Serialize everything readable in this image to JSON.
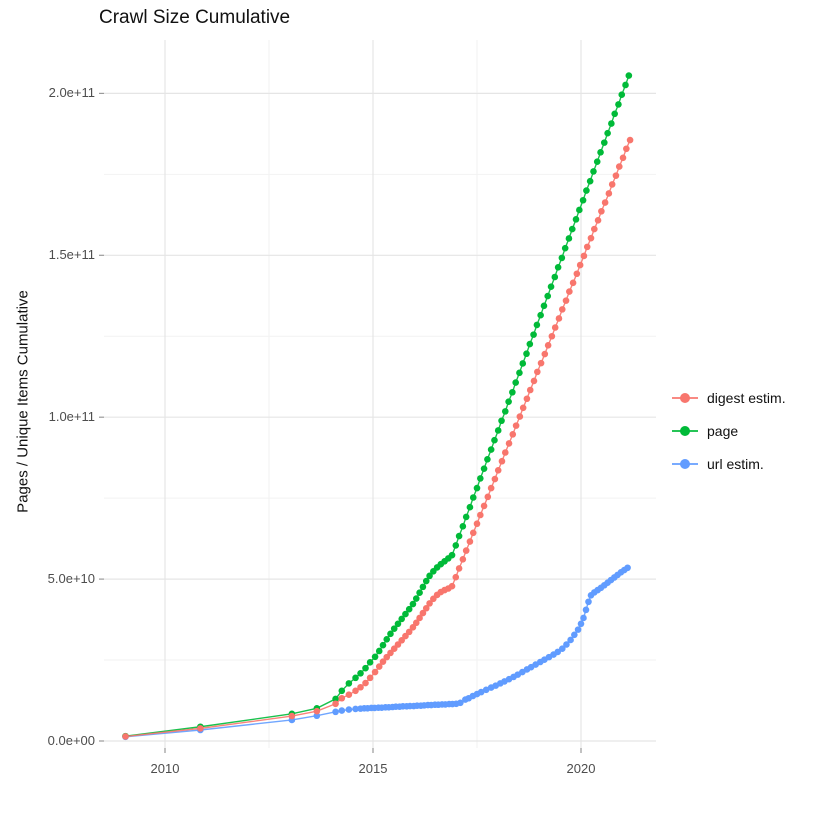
{
  "title": "Crawl Size Cumulative",
  "legend": {
    "items": [
      {
        "label": "digest estim.",
        "color": "#F8766D"
      },
      {
        "label": "page",
        "color": "#00BA38"
      },
      {
        "label": "url estim.",
        "color": "#619CFF"
      }
    ]
  },
  "chart_data": {
    "type": "scatter",
    "title": "Crawl Size Cumulative",
    "xlabel": "",
    "ylabel": "Pages / Unique Items Cumulative",
    "value_unit": "1e9",
    "xlim": [
      2008.5,
      2021.8
    ],
    "ylim": [
      0,
      215
    ],
    "grid": "on",
    "legend_position": "right",
    "x_major_ticks": [
      {
        "label": "2010",
        "t": 2010
      },
      {
        "label": "2015",
        "t": 2015
      },
      {
        "label": "2020",
        "t": 2020
      }
    ],
    "x_minor_ticks": [
      2012.5,
      2017.5
    ],
    "y_major_ticks": [
      {
        "label": "0.0e+00",
        "v": 0
      },
      {
        "label": "5.0e+10",
        "v": 50
      },
      {
        "label": "1.0e+11",
        "v": 100
      },
      {
        "label": "1.5e+11",
        "v": 150
      },
      {
        "label": "2.0e+11",
        "v": 200
      }
    ],
    "y_minor_ticks": [
      25,
      75,
      125,
      175
    ],
    "series": [
      {
        "name": "page",
        "color": "#00BA38",
        "points": [
          [
            2009.05,
            1.5
          ],
          [
            2010.85,
            4.4
          ],
          [
            2013.05,
            8.4
          ],
          [
            2013.65,
            10.1
          ],
          [
            2014.1,
            13.0
          ],
          [
            2014.25,
            15.5
          ],
          [
            2014.42,
            17.8
          ],
          [
            2014.58,
            19.5
          ],
          [
            2014.7,
            20.9
          ],
          [
            2014.82,
            22.5
          ],
          [
            2014.93,
            24.3
          ],
          [
            2015.05,
            26.0
          ],
          [
            2015.15,
            27.8
          ],
          [
            2015.24,
            29.6
          ],
          [
            2015.33,
            31.4
          ],
          [
            2015.42,
            33.1
          ],
          [
            2015.51,
            34.7
          ],
          [
            2015.6,
            36.2
          ],
          [
            2015.69,
            37.7
          ],
          [
            2015.78,
            39.2
          ],
          [
            2015.87,
            40.7
          ],
          [
            2015.96,
            42.3
          ],
          [
            2016.04,
            44.0
          ],
          [
            2016.12,
            45.8
          ],
          [
            2016.2,
            47.6
          ],
          [
            2016.28,
            49.4
          ],
          [
            2016.36,
            51.0
          ],
          [
            2016.45,
            52.4
          ],
          [
            2016.54,
            53.6
          ],
          [
            2016.63,
            54.6
          ],
          [
            2016.72,
            55.5
          ],
          [
            2016.81,
            56.4
          ],
          [
            2016.9,
            57.4
          ],
          [
            2016.99,
            60.4
          ],
          [
            2017.07,
            63.3
          ],
          [
            2017.16,
            66.3
          ],
          [
            2017.24,
            69.2
          ],
          [
            2017.33,
            72.2
          ],
          [
            2017.41,
            75.2
          ],
          [
            2017.5,
            78.1
          ],
          [
            2017.58,
            81.1
          ],
          [
            2017.67,
            84.1
          ],
          [
            2017.75,
            87.0
          ],
          [
            2017.84,
            90.0
          ],
          [
            2017.92,
            92.9
          ],
          [
            2018.01,
            95.9
          ],
          [
            2018.09,
            98.9
          ],
          [
            2018.18,
            101.8
          ],
          [
            2018.26,
            104.8
          ],
          [
            2018.35,
            107.7
          ],
          [
            2018.43,
            110.7
          ],
          [
            2018.52,
            113.7
          ],
          [
            2018.6,
            116.6
          ],
          [
            2018.69,
            119.6
          ],
          [
            2018.77,
            122.6
          ],
          [
            2018.86,
            125.5
          ],
          [
            2018.94,
            128.5
          ],
          [
            2019.03,
            131.5
          ],
          [
            2019.11,
            134.4
          ],
          [
            2019.2,
            137.4
          ],
          [
            2019.28,
            140.3
          ],
          [
            2019.37,
            143.3
          ],
          [
            2019.45,
            146.3
          ],
          [
            2019.54,
            149.2
          ],
          [
            2019.62,
            152.2
          ],
          [
            2019.71,
            155.2
          ],
          [
            2019.79,
            158.1
          ],
          [
            2019.88,
            161.1
          ],
          [
            2019.96,
            164.0
          ],
          [
            2020.05,
            167.0
          ],
          [
            2020.13,
            170.0
          ],
          [
            2020.22,
            172.9
          ],
          [
            2020.3,
            175.9
          ],
          [
            2020.39,
            178.9
          ],
          [
            2020.47,
            181.8
          ],
          [
            2020.56,
            184.8
          ],
          [
            2020.64,
            187.7
          ],
          [
            2020.73,
            190.7
          ],
          [
            2020.81,
            193.7
          ],
          [
            2020.9,
            196.6
          ],
          [
            2020.98,
            199.6
          ],
          [
            2021.07,
            202.6
          ],
          [
            2021.15,
            205.5
          ]
        ]
      },
      {
        "name": "digest estim.",
        "color": "#F8766D",
        "points": [
          [
            2009.05,
            1.4
          ],
          [
            2010.85,
            3.9
          ],
          [
            2013.05,
            7.7
          ],
          [
            2013.65,
            9.2
          ],
          [
            2014.1,
            11.5
          ],
          [
            2014.25,
            13.2
          ],
          [
            2014.42,
            14.3
          ],
          [
            2014.58,
            15.5
          ],
          [
            2014.7,
            16.6
          ],
          [
            2014.82,
            17.9
          ],
          [
            2014.93,
            19.5
          ],
          [
            2015.05,
            21.3
          ],
          [
            2015.15,
            23.0
          ],
          [
            2015.24,
            24.5
          ],
          [
            2015.33,
            25.9
          ],
          [
            2015.42,
            27.2
          ],
          [
            2015.51,
            28.5
          ],
          [
            2015.6,
            29.8
          ],
          [
            2015.69,
            31.1
          ],
          [
            2015.78,
            32.4
          ],
          [
            2015.87,
            33.7
          ],
          [
            2015.96,
            35.1
          ],
          [
            2016.04,
            36.5
          ],
          [
            2016.12,
            38.0
          ],
          [
            2016.2,
            39.5
          ],
          [
            2016.28,
            41.0
          ],
          [
            2016.36,
            42.5
          ],
          [
            2016.45,
            43.9
          ],
          [
            2016.54,
            45.1
          ],
          [
            2016.63,
            46.0
          ],
          [
            2016.72,
            46.6
          ],
          [
            2016.81,
            47.1
          ],
          [
            2016.9,
            47.8
          ],
          [
            2016.99,
            50.6
          ],
          [
            2017.07,
            53.3
          ],
          [
            2017.16,
            56.1
          ],
          [
            2017.24,
            58.8
          ],
          [
            2017.33,
            61.6
          ],
          [
            2017.41,
            64.3
          ],
          [
            2017.5,
            67.1
          ],
          [
            2017.58,
            69.8
          ],
          [
            2017.67,
            72.6
          ],
          [
            2017.76,
            75.4
          ],
          [
            2017.84,
            78.1
          ],
          [
            2017.93,
            80.9
          ],
          [
            2018.01,
            83.6
          ],
          [
            2018.1,
            86.4
          ],
          [
            2018.18,
            89.1
          ],
          [
            2018.27,
            91.9
          ],
          [
            2018.36,
            94.7
          ],
          [
            2018.44,
            97.4
          ],
          [
            2018.53,
            100.2
          ],
          [
            2018.61,
            102.9
          ],
          [
            2018.7,
            105.7
          ],
          [
            2018.78,
            108.4
          ],
          [
            2018.87,
            111.2
          ],
          [
            2018.95,
            114.0
          ],
          [
            2019.04,
            116.7
          ],
          [
            2019.13,
            119.5
          ],
          [
            2019.21,
            122.2
          ],
          [
            2019.3,
            125.0
          ],
          [
            2019.38,
            127.7
          ],
          [
            2019.47,
            130.5
          ],
          [
            2019.55,
            133.3
          ],
          [
            2019.64,
            136.0
          ],
          [
            2019.72,
            138.8
          ],
          [
            2019.81,
            141.5
          ],
          [
            2019.9,
            144.3
          ],
          [
            2019.98,
            147.0
          ],
          [
            2020.07,
            149.8
          ],
          [
            2020.15,
            152.6
          ],
          [
            2020.24,
            155.3
          ],
          [
            2020.32,
            158.1
          ],
          [
            2020.41,
            160.8
          ],
          [
            2020.49,
            163.6
          ],
          [
            2020.58,
            166.3
          ],
          [
            2020.67,
            169.1
          ],
          [
            2020.75,
            171.9
          ],
          [
            2020.84,
            174.6
          ],
          [
            2020.92,
            177.4
          ],
          [
            2021.01,
            180.1
          ],
          [
            2021.09,
            182.9
          ],
          [
            2021.18,
            185.6
          ]
        ]
      },
      {
        "name": "url estim.",
        "color": "#619CFF",
        "points": [
          [
            2009.05,
            1.3
          ],
          [
            2010.85,
            3.4
          ],
          [
            2013.05,
            6.5
          ],
          [
            2013.65,
            7.8
          ],
          [
            2014.1,
            9.0
          ],
          [
            2014.25,
            9.4
          ],
          [
            2014.42,
            9.7
          ],
          [
            2014.58,
            9.9
          ],
          [
            2014.7,
            10.0
          ],
          [
            2014.79,
            10.1
          ],
          [
            2014.87,
            10.1
          ],
          [
            2014.96,
            10.2
          ],
          [
            2015.04,
            10.2
          ],
          [
            2015.13,
            10.3
          ],
          [
            2015.21,
            10.3
          ],
          [
            2015.3,
            10.4
          ],
          [
            2015.38,
            10.4
          ],
          [
            2015.47,
            10.5
          ],
          [
            2015.55,
            10.6
          ],
          [
            2015.64,
            10.6
          ],
          [
            2015.72,
            10.7
          ],
          [
            2015.81,
            10.7
          ],
          [
            2015.89,
            10.8
          ],
          [
            2015.98,
            10.8
          ],
          [
            2016.06,
            10.9
          ],
          [
            2016.15,
            10.9
          ],
          [
            2016.23,
            11.0
          ],
          [
            2016.32,
            11.1
          ],
          [
            2016.4,
            11.1
          ],
          [
            2016.49,
            11.2
          ],
          [
            2016.57,
            11.2
          ],
          [
            2016.66,
            11.3
          ],
          [
            2016.74,
            11.3
          ],
          [
            2016.83,
            11.4
          ],
          [
            2016.91,
            11.4
          ],
          [
            2017.0,
            11.5
          ],
          [
            2017.1,
            11.8
          ],
          [
            2017.22,
            12.8
          ],
          [
            2017.3,
            13.2
          ],
          [
            2017.4,
            13.9
          ],
          [
            2017.5,
            14.5
          ],
          [
            2017.6,
            15.1
          ],
          [
            2017.72,
            15.8
          ],
          [
            2017.84,
            16.5
          ],
          [
            2017.95,
            17.1
          ],
          [
            2018.06,
            17.8
          ],
          [
            2018.16,
            18.4
          ],
          [
            2018.27,
            19.1
          ],
          [
            2018.38,
            19.8
          ],
          [
            2018.48,
            20.5
          ],
          [
            2018.59,
            21.3
          ],
          [
            2018.7,
            22.1
          ],
          [
            2018.8,
            22.8
          ],
          [
            2018.91,
            23.6
          ],
          [
            2019.02,
            24.4
          ],
          [
            2019.12,
            25.1
          ],
          [
            2019.23,
            25.9
          ],
          [
            2019.34,
            26.7
          ],
          [
            2019.44,
            27.5
          ],
          [
            2019.55,
            28.5
          ],
          [
            2019.65,
            29.8
          ],
          [
            2019.75,
            31.2
          ],
          [
            2019.84,
            32.8
          ],
          [
            2019.93,
            34.4
          ],
          [
            2020.0,
            36.2
          ],
          [
            2020.06,
            38.0
          ],
          [
            2020.12,
            40.5
          ],
          [
            2020.18,
            43.0
          ],
          [
            2020.24,
            45.0
          ],
          [
            2020.32,
            45.9
          ],
          [
            2020.4,
            46.6
          ],
          [
            2020.48,
            47.3
          ],
          [
            2020.56,
            48.1
          ],
          [
            2020.64,
            48.9
          ],
          [
            2020.72,
            49.7
          ],
          [
            2020.8,
            50.5
          ],
          [
            2020.88,
            51.3
          ],
          [
            2020.96,
            52.1
          ],
          [
            2021.04,
            52.8
          ],
          [
            2021.12,
            53.5
          ]
        ]
      }
    ]
  }
}
